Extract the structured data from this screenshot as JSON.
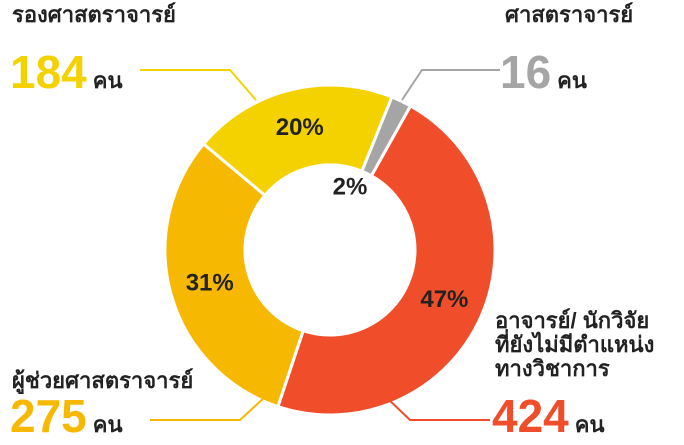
{
  "chart_data": {
    "type": "donut",
    "categories": [
      [
        "ศาสตราจารย์"
      ],
      [
        "อาจารย์/ นักวิจัย",
        "ที่ยังไม่มีตำแหน่ง",
        "ทางวิชาการ"
      ],
      [
        "ผู้ช่วยศาสตราจารย์"
      ],
      [
        "รองศาสตราจารย์"
      ]
    ],
    "values": [
      2,
      47,
      31,
      20
    ],
    "value_labels": [
      "2%",
      "47%",
      "31%",
      "20%"
    ],
    "counts": [
      16,
      424,
      275,
      184
    ],
    "unit": "คน",
    "colors": [
      "#a5a5a5",
      "#f04e2b",
      "#f6b800",
      "#f4d200"
    ]
  }
}
